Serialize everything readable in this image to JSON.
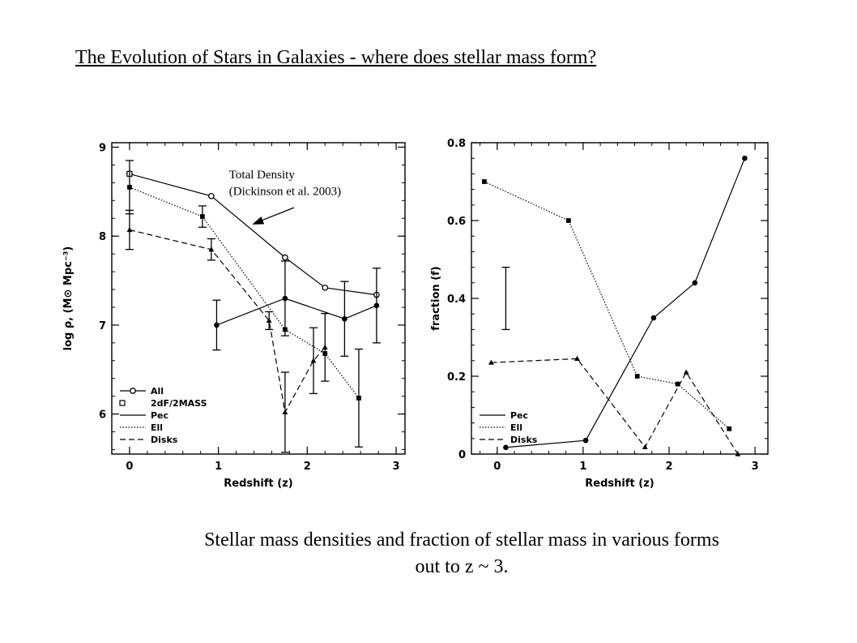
{
  "slide": {
    "title": "The Evolution of Stars in Galaxies - where does stellar mass form?",
    "caption_line1": "Stellar mass densities and fraction of stellar mass in various forms",
    "caption_line2": "out to z ~ 3."
  },
  "chart_data": [
    {
      "type": "line",
      "xlabel": "Redshift (z)",
      "ylabel": "log ρ, (M⊙ Mpc⁻³)",
      "xlim": [
        -0.2,
        3.1
      ],
      "ylim": [
        5.55,
        9.05
      ],
      "xticks": [
        "0",
        "1",
        "2",
        "3"
      ],
      "yticks": [
        "6",
        "7",
        "8",
        "9"
      ],
      "annotation": {
        "line1": "Total Density",
        "line2": "(Dickinson et al. 2003)",
        "arrow_to": [
          1.38,
          8.13
        ]
      },
      "legend": [
        {
          "label": "All",
          "style": "solid",
          "marker": "open-circle"
        },
        {
          "label": "2dF/2MASS",
          "style": "none",
          "marker": "open-square"
        },
        {
          "label": "Pec",
          "style": "solid",
          "marker": "none"
        },
        {
          "label": "Ell",
          "style": "dotted",
          "marker": "none"
        },
        {
          "label": "Disks",
          "style": "dashed",
          "marker": "none"
        }
      ],
      "series": [
        {
          "name": "All",
          "style": "solid",
          "marker": "open-circle",
          "x": [
            0.0,
            0.92,
            1.75,
            2.2,
            2.78
          ],
          "y": [
            8.7,
            8.45,
            7.76,
            7.42,
            7.34
          ],
          "err": [
            null,
            null,
            null,
            null,
            null
          ]
        },
        {
          "name": "2dF/2MASS",
          "style": "none",
          "marker": "open-square",
          "x": [
            0.0
          ],
          "y": [
            8.7
          ],
          "err": [
            null
          ]
        },
        {
          "name": "Pec",
          "style": "solid",
          "marker": "filled-circle",
          "x": [
            0.98,
            1.75,
            2.42,
            2.78
          ],
          "y": [
            7.0,
            7.3,
            7.07,
            7.22
          ],
          "err": [
            0.28,
            0.42,
            0.42,
            0.42
          ]
        },
        {
          "name": "Ell",
          "style": "dotted",
          "marker": "filled-square",
          "x": [
            0.0,
            0.82,
            1.75,
            2.2,
            2.58
          ],
          "y": [
            8.55,
            8.22,
            6.95,
            6.68,
            6.18
          ],
          "err": [
            0.3,
            0.12,
            null,
            null,
            0.55
          ]
        },
        {
          "name": "Disks",
          "style": "dashed",
          "marker": "filled-triangle",
          "x": [
            0.0,
            0.92,
            1.57,
            1.75,
            2.07,
            2.2
          ],
          "y": [
            8.07,
            7.85,
            7.05,
            6.02,
            6.6,
            6.75
          ],
          "err": [
            0.22,
            0.12,
            0.1,
            0.45,
            0.37,
            0.38
          ]
        }
      ]
    },
    {
      "type": "line",
      "xlabel": "Redshift (z)",
      "ylabel": "fraction (f)",
      "xlim": [
        -0.3,
        3.15
      ],
      "ylim": [
        0,
        0.8
      ],
      "xticks": [
        "0",
        "1",
        "2",
        "3"
      ],
      "yticks": [
        "0",
        "0.2",
        "0.4",
        "0.6",
        "0.8"
      ],
      "error_bar": {
        "x": 0.1,
        "ymin": 0.32,
        "ymax": 0.48
      },
      "legend": [
        {
          "label": "Pec",
          "style": "solid"
        },
        {
          "label": "Ell",
          "style": "dotted"
        },
        {
          "label": "Disks",
          "style": "dashed"
        }
      ],
      "series": [
        {
          "name": "Pec",
          "style": "solid",
          "marker": "filled-circle",
          "x": [
            0.1,
            1.03,
            1.82,
            2.3,
            2.88
          ],
          "y": [
            0.017,
            0.035,
            0.35,
            0.44,
            0.76
          ]
        },
        {
          "name": "Ell",
          "style": "dotted",
          "marker": "filled-square",
          "x": [
            -0.15,
            0.83,
            1.63,
            2.1,
            2.7
          ],
          "y": [
            0.7,
            0.6,
            0.2,
            0.18,
            0.065
          ]
        },
        {
          "name": "Disks",
          "style": "dashed",
          "marker": "filled-triangle",
          "x": [
            -0.07,
            0.93,
            1.72,
            2.2,
            2.8
          ],
          "y": [
            0.235,
            0.245,
            0.018,
            0.21,
            0.0
          ]
        }
      ]
    }
  ]
}
